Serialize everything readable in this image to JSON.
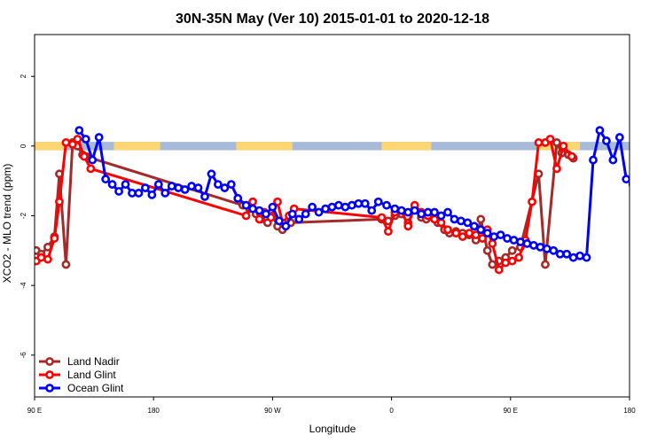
{
  "chart_data": {
    "type": "line",
    "title": "30N-35N May (Ver 10)   2015-01-01 to 2020-12-18",
    "xlabel": "Longitude",
    "ylabel": "XCO2 - MLO trend (ppm)",
    "xlim": [
      0,
      360
    ],
    "ylim": [
      -7.2,
      3.2
    ],
    "xticks": [
      {
        "value": 0,
        "label": "90 E"
      },
      {
        "value": 72,
        "label": "180"
      },
      {
        "value": 144,
        "label": "90 W"
      },
      {
        "value": 216,
        "label": "0"
      },
      {
        "value": 288,
        "label": "90 E"
      },
      {
        "value": 360,
        "label": "180"
      }
    ],
    "yticks": [
      {
        "value": 2,
        "label": "2"
      },
      {
        "value": 0,
        "label": "0"
      },
      {
        "value": -2,
        "label": "-2"
      },
      {
        "value": -4,
        "label": "-4"
      },
      {
        "value": -6,
        "label": "-6"
      }
    ],
    "grid": false,
    "legend_position": "bottom-left",
    "band": {
      "y_top": 0.12,
      "y_bottom": -0.12,
      "base_color": "#a7bbd9",
      "land_color": "#fdd673",
      "land_ranges": [
        [
          0,
          18
        ],
        [
          48,
          76
        ],
        [
          122,
          156
        ],
        [
          210,
          240
        ],
        [
          305,
          330
        ]
      ]
    },
    "series": [
      {
        "name": "Land Nadir",
        "color": "#a52a2a",
        "x": [
          1,
          4,
          8,
          12,
          15,
          19,
          23,
          26,
          29,
          31,
          126,
          130,
          134,
          137,
          141,
          144,
          147,
          150,
          155,
          210,
          214,
          218,
          222,
          226,
          230,
          234,
          237,
          240,
          244,
          248,
          251,
          255,
          259,
          263,
          267,
          270,
          274,
          277,
          281,
          285,
          289,
          294,
          305,
          309,
          316,
          319,
          323,
          326
        ],
        "y": [
          -3.0,
          -3.1,
          -2.9,
          -2.6,
          -0.8,
          -3.4,
          0.1,
          0.0,
          -0.25,
          -0.3,
          -1.7,
          -1.8,
          -1.95,
          -2.1,
          -2.2,
          -2.0,
          -2.3,
          -2.4,
          -2.2,
          -2.1,
          -2.15,
          -2.0,
          -1.95,
          -2.2,
          -1.8,
          -2.05,
          -2.1,
          -2.0,
          -2.2,
          -2.4,
          -2.5,
          -2.45,
          -2.5,
          -2.55,
          -2.7,
          -2.1,
          -3.0,
          -3.4,
          -3.3,
          -3.2,
          -3.0,
          -2.9,
          -0.8,
          -3.4,
          0.1,
          -0.2,
          -0.25,
          -0.35
        ],
        "show_in_legend": true
      },
      {
        "name": "Land Glint",
        "color": "#ff0000",
        "x": [
          1,
          4,
          8,
          12,
          15,
          19,
          23,
          26,
          30,
          34,
          128,
          132,
          136,
          139,
          143,
          147,
          150,
          154,
          157,
          210,
          214,
          218,
          222,
          226,
          230,
          234,
          238,
          242,
          246,
          250,
          255,
          259,
          263,
          267,
          271,
          274,
          277,
          281,
          285,
          289,
          293,
          297,
          301,
          305,
          309,
          312,
          316,
          320,
          325
        ],
        "y": [
          -3.3,
          -3.2,
          -3.25,
          -2.65,
          -1.6,
          0.1,
          0.05,
          0.2,
          -0.3,
          -0.65,
          -2.0,
          -1.6,
          -2.1,
          -1.9,
          -2.05,
          -1.6,
          -2.2,
          -2.0,
          -1.8,
          -2.05,
          -2.45,
          -1.9,
          -1.85,
          -2.3,
          -1.7,
          -1.9,
          -2.0,
          -2.1,
          -2.2,
          -2.4,
          -2.5,
          -2.6,
          -2.5,
          -2.55,
          -2.65,
          -2.4,
          -2.8,
          -3.55,
          -3.35,
          -3.3,
          -3.2,
          -2.7,
          -1.6,
          0.1,
          0.1,
          0.2,
          -0.65,
          0.0,
          -0.3
        ],
        "show_in_legend": true
      },
      {
        "name": "Ocean Glint",
        "color": "#0000ff",
        "x": [
          27,
          31,
          35,
          39,
          43,
          47,
          51,
          55,
          59,
          63,
          67,
          71,
          75,
          79,
          83,
          87,
          91,
          95,
          99,
          103,
          107,
          111,
          115,
          119,
          123,
          128,
          132,
          136,
          140,
          144,
          148,
          152,
          156,
          160,
          164,
          168,
          172,
          176,
          180,
          184,
          188,
          192,
          196,
          200,
          204,
          208,
          213,
          218,
          222,
          226,
          230,
          234,
          238,
          242,
          246,
          250,
          254,
          258,
          262,
          266,
          270,
          274,
          278,
          282,
          286,
          290,
          294,
          298,
          302,
          306,
          310,
          314,
          318,
          322,
          326,
          330,
          334,
          338,
          342,
          346,
          350,
          354,
          358,
          362,
          366
        ],
        "y": [
          0.45,
          0.2,
          -0.4,
          0.25,
          -0.95,
          -1.1,
          -1.3,
          -1.1,
          -1.35,
          -1.35,
          -1.2,
          -1.4,
          -1.1,
          -1.35,
          -1.15,
          -1.2,
          -1.25,
          -1.15,
          -1.2,
          -1.45,
          -0.8,
          -1.1,
          -1.2,
          -1.1,
          -1.5,
          -1.7,
          -1.8,
          -1.85,
          -1.95,
          -1.75,
          -2.15,
          -2.3,
          -1.95,
          -2.1,
          -1.95,
          -1.75,
          -1.9,
          -1.8,
          -1.75,
          -1.7,
          -1.75,
          -1.7,
          -1.65,
          -1.65,
          -1.85,
          -1.6,
          -1.7,
          -1.8,
          -1.85,
          -1.9,
          -1.85,
          -1.95,
          -1.9,
          -1.9,
          -2.0,
          -1.9,
          -2.1,
          -2.15,
          -2.2,
          -2.3,
          -2.4,
          -2.5,
          -2.6,
          -2.55,
          -2.65,
          -2.7,
          -2.75,
          -2.8,
          -2.85,
          -2.9,
          -2.95,
          -3.0,
          -3.1,
          -3.1,
          -3.2,
          -3.15,
          -3.2,
          -0.4,
          0.45,
          0.15,
          -0.4,
          0.25,
          -0.95,
          -1.1,
          -1.3
        ],
        "show_in_legend": true
      }
    ]
  }
}
